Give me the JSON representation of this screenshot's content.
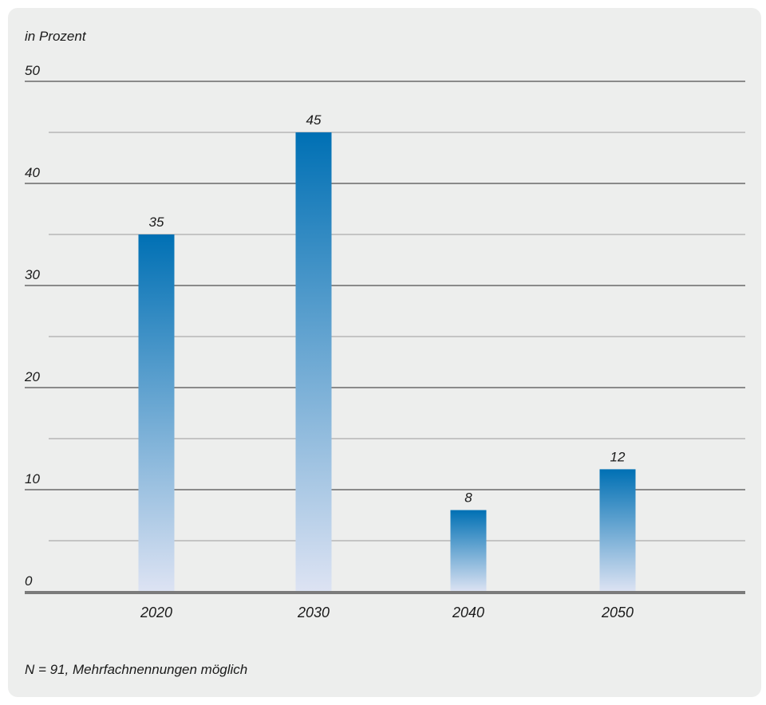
{
  "chart_data": {
    "type": "bar",
    "unit_label": "in Prozent",
    "categories": [
      "2020",
      "2030",
      "2040",
      "2050"
    ],
    "values": [
      35,
      45,
      8,
      12
    ],
    "value_labels": [
      "35",
      "45",
      "8",
      "12"
    ],
    "yticks": [
      "0",
      "10",
      "20",
      "30",
      "40",
      "50"
    ],
    "ylim": [
      0,
      50
    ],
    "grid": true,
    "bar_color_top": "#0070b4",
    "bar_color_bottom": "#dde3f3",
    "footnote": "N = 91, Mehrfachnennungen möglich"
  }
}
